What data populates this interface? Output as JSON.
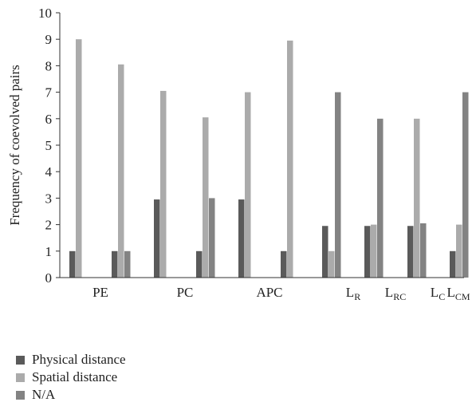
{
  "chart_data": {
    "type": "bar",
    "ylabel": "Frequency of coevolved pairs",
    "xlabel": "",
    "ylim": [
      0,
      10
    ],
    "yticks": [
      "0",
      "1",
      "2",
      "3",
      "4",
      "5",
      "6",
      "7",
      "8",
      "9",
      "10"
    ],
    "grid": false,
    "legend_position": "bottom-left",
    "categories": [
      {
        "label": "PE",
        "sub": ""
      },
      {
        "label": "PC",
        "sub": ""
      },
      {
        "label": "APC",
        "sub": ""
      },
      {
        "label": "L",
        "sub": "R"
      },
      {
        "label": "L",
        "sub": "RC"
      },
      {
        "label": "L",
        "sub": "C"
      },
      {
        "label": "L",
        "sub": "CM"
      }
    ],
    "subgroups": [
      {
        "category": "PE",
        "values": [
          1,
          9,
          0
        ]
      },
      {
        "category": "PE",
        "values": [
          1,
          8.05,
          1
        ]
      },
      {
        "category": "PC",
        "values": [
          2.95,
          7.05,
          0
        ]
      },
      {
        "category": "PC",
        "values": [
          1,
          6.05,
          3
        ]
      },
      {
        "category": "APC",
        "values": [
          2.95,
          7,
          0
        ]
      },
      {
        "category": "APC",
        "values": [
          1,
          8.95,
          0
        ]
      },
      {
        "category": "LR",
        "values": [
          1.95,
          1,
          7
        ]
      },
      {
        "category": "LRC",
        "values": [
          1.95,
          2,
          6
        ]
      },
      {
        "category": "LC",
        "values": [
          1.95,
          6,
          2.05
        ]
      },
      {
        "category": "LCM",
        "values": [
          1,
          2,
          7
        ]
      }
    ],
    "series": [
      {
        "name": "Physical distance",
        "color": "#5a5a5a"
      },
      {
        "name": "Spatial distance",
        "color": "#ababab"
      },
      {
        "name": "N/A",
        "color": "#838383"
      }
    ]
  }
}
